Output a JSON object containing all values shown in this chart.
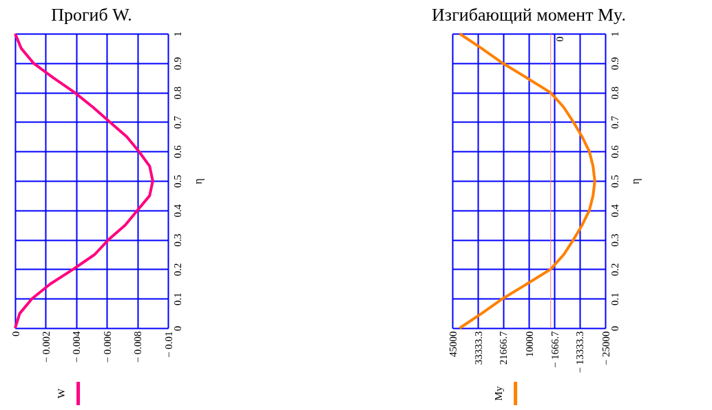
{
  "chart_data": [
    {
      "type": "line",
      "title": "Прогиб W.",
      "ylabel": "η",
      "x": [
        0,
        0.05,
        0.1,
        0.15,
        0.2,
        0.25,
        0.3,
        0.35,
        0.4,
        0.45,
        0.5,
        0.55,
        0.6,
        0.65,
        0.7,
        0.75,
        0.8,
        0.85,
        0.9,
        0.95,
        1
      ],
      "series": [
        {
          "name": "W",
          "color": "#ff0080",
          "values": [
            0,
            -0.0003,
            -0.0011,
            -0.0023,
            -0.0038,
            -0.0052,
            -0.0061,
            -0.0072,
            -0.008,
            -0.0088,
            -0.009,
            -0.0088,
            -0.0081,
            -0.0073,
            -0.0062,
            -0.0051,
            -0.0039,
            -0.0025,
            -0.0012,
            -0.0004,
            0
          ]
        }
      ],
      "orientation": "horizontal",
      "xlim": [
        0,
        -0.01
      ],
      "xticks": [
        0,
        {
          "value": -0.002,
          "label": "− 0.002"
        },
        {
          "value": -0.004,
          "label": "− 0.004"
        },
        {
          "value": -0.006,
          "label": "− 0.006"
        },
        {
          "value": -0.008,
          "label": "− 0.008"
        },
        {
          "value": -0.01,
          "label": "− 0.01"
        }
      ],
      "ylim": [
        0,
        1
      ],
      "yticks": [
        0,
        0.1,
        0.2,
        0.3,
        0.4,
        0.5,
        0.6,
        0.7,
        0.8,
        0.9,
        1
      ],
      "grid": true,
      "legend": "bottom",
      "line_style": "solid",
      "marker": "none"
    },
    {
      "type": "line",
      "title": "Изгибающий момент My.",
      "ylabel": "η",
      "x": [
        0,
        0.05,
        0.1,
        0.15,
        0.2,
        0.25,
        0.3,
        0.35,
        0.4,
        0.45,
        0.5,
        0.55,
        0.6,
        0.65,
        0.7,
        0.75,
        0.8,
        0.85,
        0.9,
        0.95,
        1
      ],
      "series": [
        {
          "name": "My",
          "color": "#ff8000",
          "values": [
            41700,
            31600,
            22000,
            10900,
            0,
            -6000,
            -10400,
            -14400,
            -17700,
            -19400,
            -20200,
            -19400,
            -17700,
            -14400,
            -10400,
            -6000,
            0,
            10900,
            22000,
            31600,
            41700
          ]
        }
      ],
      "orientation": "horizontal",
      "xlim": [
        45000,
        -25000
      ],
      "xticks": [
        45000,
        33333.3,
        21666.7,
        10000,
        {
          "value": -1666.7,
          "label": "− 1666.7"
        },
        {
          "value": -13333.3,
          "label": "− 13333.3"
        },
        {
          "value": -25000,
          "label": "− 25000"
        }
      ],
      "ylim": [
        0,
        1
      ],
      "yticks": [
        0,
        0.1,
        0.2,
        0.3,
        0.4,
        0.5,
        0.6,
        0.7,
        0.8,
        0.9,
        1
      ],
      "ref_lines": [
        {
          "axis": "x",
          "value": 0,
          "label": "0",
          "color": "#ff8080"
        }
      ],
      "grid": true,
      "legend": "bottom",
      "line_style": "solid",
      "marker": "none"
    }
  ]
}
